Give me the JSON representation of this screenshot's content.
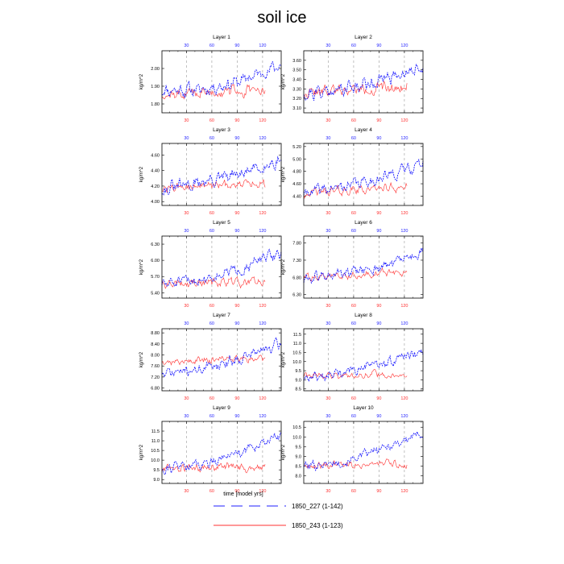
{
  "figure": {
    "title": "soil ice",
    "xlabel": "time [model yrs]"
  },
  "colors": {
    "series_a": "#1f1fff",
    "series_b": "#ff3030",
    "grid": "#999999"
  },
  "legend": {
    "position": "bottom-center",
    "entries": [
      {
        "label": "1850_227 (1-142)",
        "color": "#1f1fff",
        "style": "dashed"
      },
      {
        "label": "1850_243 (1-123)",
        "color": "#ff3030",
        "style": "solid"
      }
    ]
  },
  "chart_data": [
    {
      "type": "line",
      "title": "Layer 1",
      "ylabel": "kg/m^2",
      "xlim": [
        1,
        142
      ],
      "ylim": [
        1.75,
        2.1
      ],
      "yticks": [
        "1.80",
        "1.90",
        "2.00"
      ],
      "xticks_top": [
        "30",
        "60",
        "90",
        "120"
      ],
      "xticks_bottom": [
        "30",
        "60",
        "90",
        "120"
      ],
      "series": [
        {
          "name": "1850_227 (1-142)",
          "x_range": [
            1,
            142
          ],
          "trend": [
            1.88,
            1.88,
            1.93,
            2.02
          ],
          "amp": 0.035,
          "seed": 11
        },
        {
          "name": "1850_243 (1-123)",
          "x_range": [
            1,
            123
          ],
          "trend": [
            1.85,
            1.86,
            1.87,
            1.87
          ],
          "amp": 0.03,
          "seed": 12
        }
      ]
    },
    {
      "type": "line",
      "title": "Layer 2",
      "ylabel": "kg/m^2",
      "xlim": [
        1,
        142
      ],
      "ylim": [
        3.05,
        3.7
      ],
      "yticks": [
        "3.10",
        "3.20",
        "3.30",
        "3.40",
        "3.50",
        "3.60"
      ],
      "xticks_top": [
        "30",
        "60",
        "90",
        "120"
      ],
      "xticks_bottom": [
        "30",
        "60",
        "90",
        "120"
      ],
      "series": [
        {
          "name": "1850_227 (1-142)",
          "x_range": [
            1,
            142
          ],
          "trend": [
            3.25,
            3.3,
            3.4,
            3.55
          ],
          "amp": 0.07,
          "seed": 21
        },
        {
          "name": "1850_243 (1-123)",
          "x_range": [
            1,
            123
          ],
          "trend": [
            3.25,
            3.28,
            3.3,
            3.32
          ],
          "amp": 0.06,
          "seed": 22
        }
      ]
    },
    {
      "type": "line",
      "title": "Layer 3",
      "ylabel": "kg/m^2",
      "xlim": [
        1,
        142
      ],
      "ylim": [
        3.95,
        4.75
      ],
      "yticks": [
        "4.00",
        "4.20",
        "4.40",
        "4.60"
      ],
      "xticks_top": [
        "30",
        "60",
        "90",
        "120"
      ],
      "xticks_bottom": [
        "30",
        "60",
        "90",
        "120"
      ],
      "series": [
        {
          "name": "1850_227 (1-142)",
          "x_range": [
            1,
            142
          ],
          "trend": [
            4.15,
            4.25,
            4.35,
            4.55
          ],
          "amp": 0.08,
          "seed": 31
        },
        {
          "name": "1850_243 (1-123)",
          "x_range": [
            1,
            123
          ],
          "trend": [
            4.15,
            4.2,
            4.22,
            4.25
          ],
          "amp": 0.06,
          "seed": 32
        }
      ]
    },
    {
      "type": "line",
      "title": "Layer 4",
      "ylabel": "kg/m^2",
      "xlim": [
        1,
        142
      ],
      "ylim": [
        4.25,
        5.25
      ],
      "yticks": [
        "4.40",
        "4.60",
        "4.80",
        "5.00",
        "5.20"
      ],
      "xticks_top": [
        "30",
        "60",
        "90",
        "120"
      ],
      "xticks_bottom": [
        "30",
        "60",
        "90",
        "120"
      ],
      "series": [
        {
          "name": "1850_227 (1-142)",
          "x_range": [
            1,
            142
          ],
          "trend": [
            4.45,
            4.55,
            4.7,
            4.95
          ],
          "amp": 0.09,
          "seed": 41
        },
        {
          "name": "1850_243 (1-123)",
          "x_range": [
            1,
            123
          ],
          "trend": [
            4.45,
            4.48,
            4.52,
            4.55
          ],
          "amp": 0.07,
          "seed": 42
        }
      ]
    },
    {
      "type": "line",
      "title": "Layer 5",
      "ylabel": "kg/m^2",
      "xlim": [
        1,
        142
      ],
      "ylim": [
        5.3,
        6.45
      ],
      "yticks": [
        "5.40",
        "5.70",
        "6.00",
        "6.30"
      ],
      "xticks_top": [
        "30",
        "60",
        "90",
        "120"
      ],
      "xticks_bottom": [
        "30",
        "60",
        "90",
        "120"
      ],
      "series": [
        {
          "name": "1850_227 (1-142)",
          "x_range": [
            1,
            142
          ],
          "trend": [
            5.55,
            5.65,
            5.85,
            6.15
          ],
          "amp": 0.1,
          "seed": 51
        },
        {
          "name": "1850_243 (1-123)",
          "x_range": [
            1,
            123
          ],
          "trend": [
            5.55,
            5.58,
            5.6,
            5.62
          ],
          "amp": 0.08,
          "seed": 52
        }
      ]
    },
    {
      "type": "line",
      "title": "Layer 6",
      "ylabel": "kg/m^2",
      "xlim": [
        1,
        142
      ],
      "ylim": [
        6.2,
        8.0
      ],
      "yticks": [
        "6.30",
        "6.80",
        "7.30",
        "7.80"
      ],
      "xticks_top": [
        "30",
        "60",
        "90",
        "120"
      ],
      "xticks_bottom": [
        "30",
        "60",
        "90",
        "120"
      ],
      "series": [
        {
          "name": "1850_227 (1-142)",
          "x_range": [
            1,
            142
          ],
          "trend": [
            6.75,
            6.9,
            7.1,
            7.55
          ],
          "amp": 0.15,
          "seed": 61
        },
        {
          "name": "1850_243 (1-123)",
          "x_range": [
            1,
            123
          ],
          "trend": [
            6.8,
            6.85,
            6.9,
            6.95
          ],
          "amp": 0.1,
          "seed": 62
        }
      ]
    },
    {
      "type": "line",
      "title": "Layer 7",
      "ylabel": "kg/m^2",
      "xlim": [
        1,
        142
      ],
      "ylim": [
        6.7,
        8.95
      ],
      "yticks": [
        "6.80",
        "7.20",
        "7.60",
        "8.00",
        "8.40",
        "8.80"
      ],
      "xticks_top": [
        "30",
        "60",
        "90",
        "120"
      ],
      "xticks_bottom": [
        "30",
        "60",
        "90",
        "120"
      ],
      "series": [
        {
          "name": "1850_227 (1-142)",
          "x_range": [
            1,
            142
          ],
          "trend": [
            7.3,
            7.5,
            7.9,
            8.4
          ],
          "amp": 0.18,
          "seed": 71
        },
        {
          "name": "1850_243 (1-123)",
          "x_range": [
            1,
            123
          ],
          "trend": [
            7.75,
            7.8,
            7.85,
            7.85
          ],
          "amp": 0.12,
          "seed": 72
        }
      ]
    },
    {
      "type": "line",
      "title": "Layer 8",
      "ylabel": "kg/m^2",
      "xlim": [
        1,
        142
      ],
      "ylim": [
        8.4,
        11.8
      ],
      "yticks": [
        "8.5",
        "9.0",
        "9.5",
        "10.0",
        "10.5",
        "11.0",
        "11.5"
      ],
      "xticks_top": [
        "30",
        "60",
        "90",
        "120"
      ],
      "xticks_bottom": [
        "30",
        "60",
        "90",
        "120"
      ],
      "series": [
        {
          "name": "1850_227 (1-142)",
          "x_range": [
            1,
            142
          ],
          "trend": [
            9.1,
            9.4,
            9.9,
            10.6
          ],
          "amp": 0.25,
          "seed": 81
        },
        {
          "name": "1850_243 (1-123)",
          "x_range": [
            1,
            123
          ],
          "trend": [
            9.2,
            9.25,
            9.3,
            9.25
          ],
          "amp": 0.18,
          "seed": 82
        }
      ]
    },
    {
      "type": "line",
      "title": "Layer 9",
      "ylabel": "kg/m^2",
      "xlim": [
        1,
        142
      ],
      "ylim": [
        8.8,
        12.0
      ],
      "yticks": [
        "9.0",
        "9.5",
        "10.0",
        "10.5",
        "11.0",
        "11.5"
      ],
      "xticks_top": [
        "30",
        "60",
        "90",
        "120"
      ],
      "xticks_bottom": [
        "30",
        "60",
        "90",
        "120"
      ],
      "series": [
        {
          "name": "1850_227 (1-142)",
          "x_range": [
            1,
            142
          ],
          "trend": [
            9.6,
            9.8,
            10.5,
            11.3
          ],
          "amp": 0.25,
          "seed": 91
        },
        {
          "name": "1850_243 (1-123)",
          "x_range": [
            1,
            123
          ],
          "trend": [
            9.55,
            9.6,
            9.65,
            9.6
          ],
          "amp": 0.2,
          "seed": 92
        }
      ]
    },
    {
      "type": "line",
      "title": "Layer 10",
      "ylabel": "kg/m^2",
      "xlim": [
        1,
        142
      ],
      "ylim": [
        7.6,
        10.8
      ],
      "yticks": [
        "8.0",
        "8.5",
        "9.0",
        "9.5",
        "10.0",
        "10.5"
      ],
      "xticks_top": [
        "30",
        "60",
        "90",
        "120"
      ],
      "xticks_bottom": [
        "30",
        "60",
        "90",
        "120"
      ],
      "series": [
        {
          "name": "1850_227 (1-142)",
          "x_range": [
            1,
            142
          ],
          "trend": [
            8.5,
            8.7,
            9.4,
            10.2
          ],
          "amp": 0.22,
          "seed": 101
        },
        {
          "name": "1850_243 (1-123)",
          "x_range": [
            1,
            123
          ],
          "trend": [
            8.5,
            8.55,
            8.6,
            8.55
          ],
          "amp": 0.18,
          "seed": 102
        }
      ]
    }
  ]
}
